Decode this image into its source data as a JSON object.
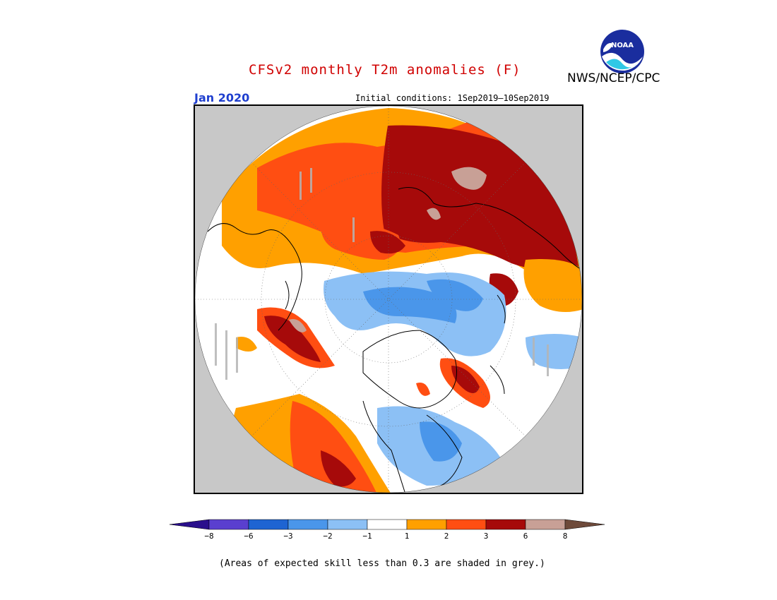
{
  "header": {
    "title": "CFSv2 monthly T2m anomalies (F)",
    "agency": "NWS/NCEP/CPC",
    "period": "Jan 2020",
    "initial_conditions": "Initial conditions: 1Sep2019–10Sep2019",
    "logo_text": "NOAA"
  },
  "colors": {
    "title": "#d00000",
    "period": "#1f3fcf",
    "frame": "#000000",
    "land_mask": "#c8c8c8",
    "skill_grey": "#b4b4b4"
  },
  "colorbar": {
    "ticks": [
      "−8",
      "−6",
      "−3",
      "−2",
      "−1",
      "1",
      "2",
      "3",
      "6",
      "8"
    ],
    "colors": [
      "#2a0f8c",
      "#5a3fcf",
      "#1e64d2",
      "#4a96ea",
      "#8cc0f5",
      "#ffffff",
      "#ffa000",
      "#ff4e12",
      "#a60a0a",
      "#c8a096",
      "#6e4a3a"
    ]
  },
  "footnote": "(Areas of expected skill less than 0.3 are shaded in grey.)"
}
